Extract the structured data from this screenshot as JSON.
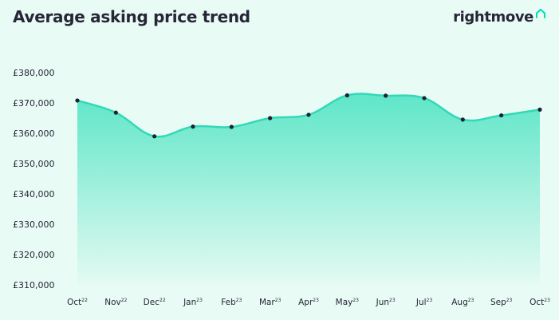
{
  "title": "Average asking price trend",
  "brand": {
    "name": "rightmove",
    "icon": "house-roof-icon",
    "accent_color": "#00deb6"
  },
  "colors": {
    "background": "#e9fbf5",
    "line": "#32d9b7",
    "area_top": "#5ee6c8",
    "area_bottom": "#e4faf2",
    "point": "#1b2333",
    "text": "#262637"
  },
  "chart_data": {
    "type": "area",
    "title": "Average asking price trend",
    "xlabel": "",
    "ylabel": "",
    "categories": [
      {
        "month": "Oct",
        "year": "22"
      },
      {
        "month": "Nov",
        "year": "22"
      },
      {
        "month": "Dec",
        "year": "22"
      },
      {
        "month": "Jan",
        "year": "23"
      },
      {
        "month": "Feb",
        "year": "23"
      },
      {
        "month": "Mar",
        "year": "23"
      },
      {
        "month": "Apr",
        "year": "23"
      },
      {
        "month": "May",
        "year": "23"
      },
      {
        "month": "Jun",
        "year": "23"
      },
      {
        "month": "Jul",
        "year": "23"
      },
      {
        "month": "Aug",
        "year": "23"
      },
      {
        "month": "Sep",
        "year": "23"
      },
      {
        "month": "Oct",
        "year": "23"
      }
    ],
    "values": [
      370800,
      366800,
      359000,
      362200,
      362100,
      365000,
      366100,
      372500,
      372400,
      371600,
      364500,
      365900,
      367800
    ],
    "ylim": [
      310000,
      380000
    ],
    "yticks": [
      310000,
      320000,
      330000,
      340000,
      350000,
      360000,
      370000,
      380000
    ],
    "ytick_labels": [
      "£310,000",
      "£320,000",
      "£330,000",
      "£340,000",
      "£350,000",
      "£360,000",
      "£370,000",
      "£380,000"
    ],
    "grid": false,
    "legend": "none"
  }
}
